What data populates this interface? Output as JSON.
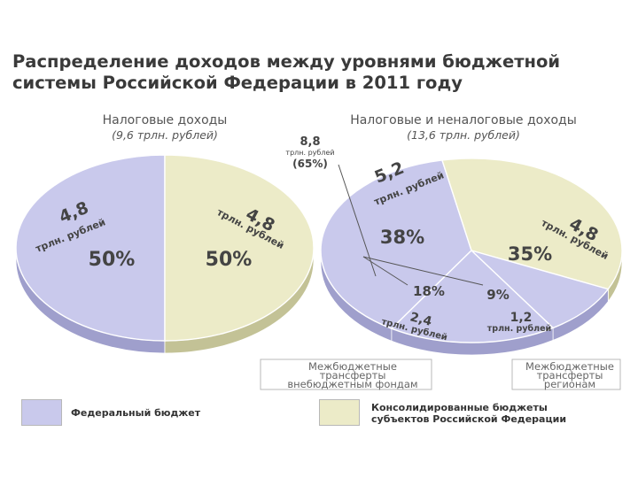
{
  "title": {
    "line1": "Распределение доходов между уровнями бюджетной",
    "line2": "системы Российской Федерации в 2011 году"
  },
  "colors": {
    "federal": "#c9c9ec",
    "federal_dark": "#9f9fcc",
    "regional": "#ecebc8",
    "regional_dark": "#c3c296",
    "label": "#444444"
  },
  "chart_data": [
    {
      "type": "pie",
      "title": "Налоговые доходы",
      "subtitle": "(9,6 трлн. рублей)",
      "slices": [
        {
          "name": "Федеральный бюджет",
          "value": 4.8,
          "value_label": "4,8",
          "unit": "трлн. рублей",
          "percent": 50,
          "percent_label": "50%"
        },
        {
          "name": "Консолидированные бюджеты субъектов Российской Федерации",
          "value": 4.8,
          "value_label": "4,8",
          "unit": "трлн. рублей",
          "percent": 50,
          "percent_label": "50%"
        }
      ]
    },
    {
      "type": "pie",
      "title": "Налоговые и неналоговые доходы",
      "subtitle": "(13,6 трлн. рублей)",
      "slices": [
        {
          "name": "Федеральный бюджет",
          "value": 5.2,
          "value_label": "5,2",
          "unit": "трлн. рублей",
          "percent": 38,
          "percent_label": "38%"
        },
        {
          "name": "Консолидированные бюджеты субъектов Российской Федерации",
          "value": 4.8,
          "value_label": "4,8",
          "unit": "трлн. рублей",
          "percent": 35,
          "percent_label": "35%"
        },
        {
          "name": "Межбюджетные трансферты регионам",
          "value": 1.2,
          "value_label": "1,2",
          "unit": "трлн. рублей",
          "percent": 9,
          "percent_label": "9%"
        },
        {
          "name": "Межбюджетные трансферты внебюджетным фондам",
          "value": 2.4,
          "value_label": "2,4",
          "unit": "трлн. рублей",
          "percent": 18,
          "percent_label": "18%"
        }
      ],
      "annotation": {
        "value_label": "8,8",
        "unit": "трлн. рублей",
        "percent_label": "(65%)"
      },
      "callouts": [
        {
          "line1": "Межбюджетные",
          "line2": "трансферты",
          "line3": "внебюджетным фондам"
        },
        {
          "line1": "Межбюджетные",
          "line2": "трансферты",
          "line3": "регионам"
        }
      ]
    }
  ],
  "legend": [
    {
      "line1": "Федеральный бюджет",
      "line2": ""
    },
    {
      "line1": "Консолидированные бюджеты",
      "line2": "субъектов Российской Федерации"
    }
  ]
}
